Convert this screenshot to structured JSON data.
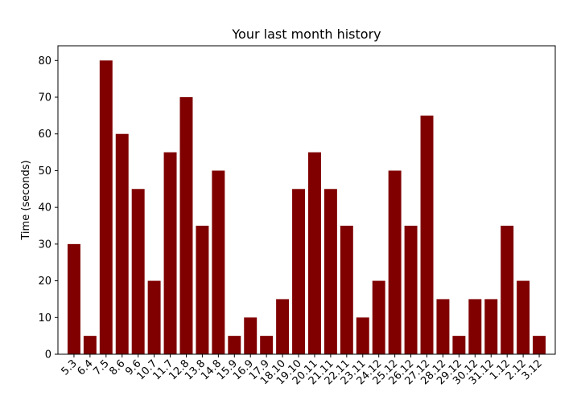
{
  "chart_data": {
    "type": "bar",
    "title": "Your last month history",
    "xlabel": "",
    "ylabel": "Time (seconds)",
    "ylim": [
      0,
      84
    ],
    "yticks": [
      0,
      10,
      20,
      30,
      40,
      50,
      60,
      70,
      80
    ],
    "grid": false,
    "bar_color": "#800000",
    "categories": [
      "5.3",
      "6.4",
      "7.5",
      "8.6",
      "9.6",
      "10.7",
      "11.7",
      "12.8",
      "13.8",
      "14.8",
      "15.9",
      "16.9",
      "17.9",
      "18.10",
      "19.10",
      "20.11",
      "21.11",
      "22.11",
      "23.11",
      "24.12",
      "25.12",
      "26.12",
      "27.12",
      "28.12",
      "29.12",
      "30.12",
      "31.12",
      "1.12",
      "2.12",
      "3.12"
    ],
    "values": [
      30,
      5,
      80,
      60,
      45,
      20,
      55,
      70,
      35,
      50,
      5,
      10,
      5,
      15,
      45,
      55,
      45,
      35,
      10,
      20,
      50,
      35,
      65,
      15,
      5,
      15,
      15,
      35,
      20,
      5
    ]
  }
}
